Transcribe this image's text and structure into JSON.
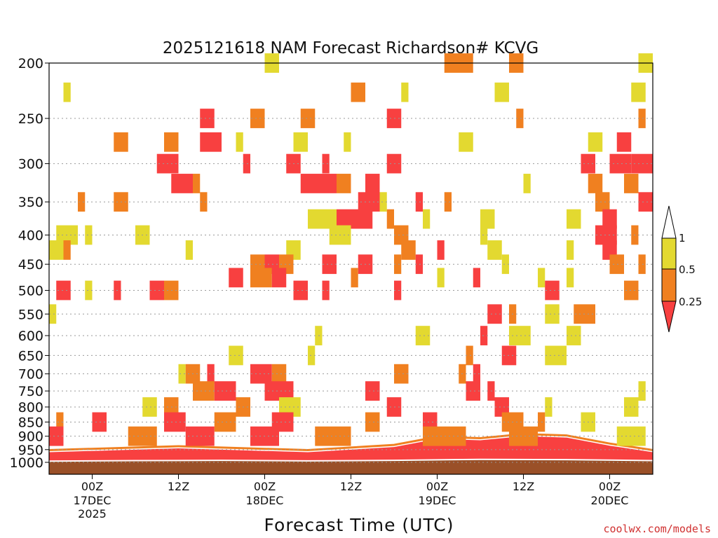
{
  "chart_data": {
    "type": "heatmap",
    "title": "2025121618 NAM Forecast Richardson# KCVG",
    "xlabel": "Forecast Time (UTC)",
    "ylabel": "",
    "credit": "coolwx.com/models",
    "y_axis": {
      "reversed": true,
      "range": [
        200,
        1000
      ],
      "ticks": [
        200,
        250,
        300,
        350,
        400,
        450,
        500,
        550,
        600,
        650,
        700,
        750,
        800,
        850,
        900,
        950,
        1000
      ]
    },
    "x_axis": {
      "range_hours": [
        -6,
        78
      ],
      "ticks": [
        {
          "h": 0,
          "time": "00Z",
          "date": "17DEC",
          "year": "2025"
        },
        {
          "h": 12,
          "time": "12Z",
          "date": "",
          "year": ""
        },
        {
          "h": 24,
          "time": "00Z",
          "date": "18DEC",
          "year": ""
        },
        {
          "h": 36,
          "time": "12Z",
          "date": "",
          "year": ""
        },
        {
          "h": 48,
          "time": "00Z",
          "date": "19DEC",
          "year": ""
        },
        {
          "h": 60,
          "time": "12Z",
          "date": "",
          "year": ""
        },
        {
          "h": 72,
          "time": "00Z",
          "date": "20DEC",
          "year": ""
        }
      ]
    },
    "grid": true,
    "legend": {
      "placement": "right",
      "labels": [
        "1",
        "0.5",
        "0.25"
      ],
      "bins": [
        {
          "range": "0.5–1",
          "color": "#e3d930"
        },
        {
          "range": "0.25–0.5",
          "color": "#f08020"
        },
        {
          "range": "<0.25",
          "color": "#f84040"
        }
      ]
    },
    "colors": {
      "ri_lt_0_25": "#f84040",
      "ri_0_25_0_5": "#f08020",
      "ri_0_5_1": "#e3d930",
      "below_ground": "#9a5028",
      "surface_line": "#ffffff"
    },
    "layers": [
      {
        "p": 200,
        "segments": [
          [
            24,
            26,
            2
          ],
          [
            49,
            53,
            1
          ],
          [
            58,
            60,
            1
          ],
          [
            76,
            78,
            2
          ]
        ]
      },
      {
        "p": 225,
        "segments": [
          [
            -4,
            -3,
            2
          ],
          [
            36,
            38,
            1
          ],
          [
            43,
            44,
            2
          ],
          [
            56,
            58,
            2
          ],
          [
            75,
            77,
            2
          ]
        ]
      },
      {
        "p": 250,
        "segments": [
          [
            15,
            17,
            0
          ],
          [
            22,
            24,
            1
          ],
          [
            29,
            31,
            1
          ],
          [
            41,
            43,
            0
          ],
          [
            59,
            60,
            1
          ],
          [
            76,
            77,
            1
          ]
        ]
      },
      {
        "p": 275,
        "segments": [
          [
            3,
            5,
            1
          ],
          [
            10,
            12,
            1
          ],
          [
            15,
            18,
            0
          ],
          [
            20,
            21,
            2
          ],
          [
            28,
            30,
            2
          ],
          [
            35,
            36,
            2
          ],
          [
            51,
            53,
            2
          ],
          [
            69,
            71,
            2
          ],
          [
            73,
            75,
            0
          ]
        ]
      },
      {
        "p": 300,
        "segments": [
          [
            9,
            12,
            0
          ],
          [
            21,
            22,
            0
          ],
          [
            27,
            29,
            0
          ],
          [
            32,
            33,
            0
          ],
          [
            41,
            43,
            0
          ],
          [
            68,
            70,
            0
          ],
          [
            72,
            75,
            0
          ],
          [
            75,
            78,
            0
          ]
        ]
      },
      {
        "p": 325,
        "segments": [
          [
            11,
            14,
            0
          ],
          [
            14,
            15,
            1
          ],
          [
            29,
            34,
            0
          ],
          [
            34,
            36,
            1
          ],
          [
            38,
            40,
            0
          ],
          [
            60,
            61,
            2
          ],
          [
            69,
            71,
            1
          ],
          [
            74,
            76,
            1
          ]
        ]
      },
      {
        "p": 350,
        "segments": [
          [
            -2,
            -1,
            1
          ],
          [
            3,
            5,
            1
          ],
          [
            15,
            16,
            1
          ],
          [
            37,
            40,
            0
          ],
          [
            40,
            41,
            2
          ],
          [
            45,
            46,
            0
          ],
          [
            49,
            50,
            1
          ],
          [
            70,
            72,
            1
          ],
          [
            76,
            78,
            0
          ]
        ]
      },
      {
        "p": 375,
        "segments": [
          [
            30,
            34,
            2
          ],
          [
            34,
            39,
            0
          ],
          [
            41,
            42,
            1
          ],
          [
            46,
            47,
            2
          ],
          [
            54,
            56,
            2
          ],
          [
            66,
            68,
            2
          ],
          [
            71,
            73,
            0
          ]
        ]
      },
      {
        "p": 400,
        "segments": [
          [
            -5,
            -2,
            2
          ],
          [
            -1,
            0,
            2
          ],
          [
            6,
            8,
            2
          ],
          [
            33,
            36,
            2
          ],
          [
            42,
            44,
            1
          ],
          [
            54,
            55,
            2
          ],
          [
            70,
            73,
            0
          ],
          [
            75,
            76,
            1
          ]
        ]
      },
      {
        "p": 425,
        "segments": [
          [
            -6,
            -4,
            2
          ],
          [
            -4,
            -3,
            1
          ],
          [
            13,
            14,
            2
          ],
          [
            27,
            29,
            2
          ],
          [
            43,
            45,
            1
          ],
          [
            48,
            49,
            0
          ],
          [
            55,
            57,
            2
          ],
          [
            66,
            67,
            2
          ],
          [
            71,
            73,
            0
          ]
        ]
      },
      {
        "p": 450,
        "segments": [
          [
            22,
            24,
            1
          ],
          [
            24,
            26,
            0
          ],
          [
            26,
            28,
            1
          ],
          [
            32,
            34,
            0
          ],
          [
            37,
            39,
            0
          ],
          [
            42,
            43,
            1
          ],
          [
            45,
            46,
            0
          ],
          [
            57,
            58,
            2
          ],
          [
            72,
            74,
            1
          ],
          [
            76,
            77,
            1
          ]
        ]
      },
      {
        "p": 475,
        "segments": [
          [
            19,
            21,
            0
          ],
          [
            22,
            25,
            1
          ],
          [
            25,
            27,
            0
          ],
          [
            36,
            37,
            1
          ],
          [
            48,
            49,
            2
          ],
          [
            53,
            54,
            0
          ],
          [
            62,
            63,
            2
          ],
          [
            66,
            67,
            2
          ]
        ]
      },
      {
        "p": 500,
        "segments": [
          [
            -5,
            -3,
            0
          ],
          [
            -1,
            0,
            2
          ],
          [
            3,
            4,
            0
          ],
          [
            8,
            10,
            0
          ],
          [
            10,
            12,
            1
          ],
          [
            28,
            30,
            0
          ],
          [
            32,
            33,
            0
          ],
          [
            42,
            43,
            0
          ],
          [
            63,
            65,
            0
          ],
          [
            74,
            76,
            1
          ]
        ]
      },
      {
        "p": 550,
        "segments": [
          [
            -6,
            -5,
            2
          ],
          [
            55,
            57,
            0
          ],
          [
            58,
            59,
            1
          ],
          [
            63,
            65,
            2
          ],
          [
            67,
            70,
            1
          ]
        ]
      },
      {
        "p": 600,
        "segments": [
          [
            31,
            32,
            2
          ],
          [
            45,
            47,
            2
          ],
          [
            54,
            55,
            0
          ],
          [
            58,
            61,
            2
          ],
          [
            66,
            68,
            2
          ]
        ]
      },
      {
        "p": 650,
        "segments": [
          [
            19,
            21,
            2
          ],
          [
            30,
            31,
            2
          ],
          [
            52,
            53,
            1
          ],
          [
            57,
            59,
            0
          ],
          [
            63,
            66,
            2
          ]
        ]
      },
      {
        "p": 700,
        "segments": [
          [
            12,
            13,
            2
          ],
          [
            13,
            15,
            1
          ],
          [
            16,
            17,
            0
          ],
          [
            22,
            25,
            0
          ],
          [
            25,
            27,
            1
          ],
          [
            42,
            44,
            1
          ],
          [
            51,
            52,
            1
          ],
          [
            53,
            54,
            0
          ]
        ]
      },
      {
        "p": 750,
        "segments": [
          [
            14,
            17,
            1
          ],
          [
            17,
            20,
            0
          ],
          [
            24,
            28,
            0
          ],
          [
            38,
            40,
            0
          ],
          [
            52,
            54,
            0
          ],
          [
            55,
            56,
            0
          ],
          [
            76,
            77,
            2
          ]
        ]
      },
      {
        "p": 800,
        "segments": [
          [
            7,
            9,
            2
          ],
          [
            10,
            12,
            1
          ],
          [
            20,
            22,
            1
          ],
          [
            26,
            29,
            2
          ],
          [
            41,
            43,
            0
          ],
          [
            56,
            58,
            0
          ],
          [
            63,
            64,
            2
          ],
          [
            74,
            76,
            2
          ]
        ]
      },
      {
        "p": 850,
        "segments": [
          [
            -5,
            -4,
            1
          ],
          [
            0,
            2,
            0
          ],
          [
            10,
            13,
            0
          ],
          [
            17,
            20,
            1
          ],
          [
            25,
            28,
            0
          ],
          [
            38,
            40,
            1
          ],
          [
            46,
            48,
            0
          ],
          [
            57,
            60,
            1
          ],
          [
            62,
            63,
            1
          ],
          [
            68,
            70,
            2
          ]
        ]
      },
      {
        "p": 900,
        "segments": [
          [
            -6,
            -4,
            0
          ],
          [
            5,
            9,
            1
          ],
          [
            13,
            17,
            0
          ],
          [
            22,
            26,
            0
          ],
          [
            31,
            36,
            1
          ],
          [
            46,
            52,
            1
          ],
          [
            58,
            62,
            1
          ],
          [
            73,
            77,
            2
          ]
        ]
      }
    ],
    "boundary_layer_top": [
      [
        -6,
        960
      ],
      [
        0,
        955
      ],
      [
        6,
        950
      ],
      [
        12,
        945
      ],
      [
        18,
        950
      ],
      [
        24,
        955
      ],
      [
        30,
        960
      ],
      [
        36,
        950
      ],
      [
        42,
        940
      ],
      [
        48,
        910
      ],
      [
        54,
        915
      ],
      [
        60,
        900
      ],
      [
        66,
        905
      ],
      [
        72,
        935
      ],
      [
        78,
        960
      ]
    ],
    "surface_pressure": [
      [
        -6,
        995
      ],
      [
        6,
        993
      ],
      [
        18,
        992
      ],
      [
        30,
        994
      ],
      [
        42,
        992
      ],
      [
        54,
        988
      ],
      [
        66,
        989
      ],
      [
        78,
        993
      ]
    ]
  }
}
